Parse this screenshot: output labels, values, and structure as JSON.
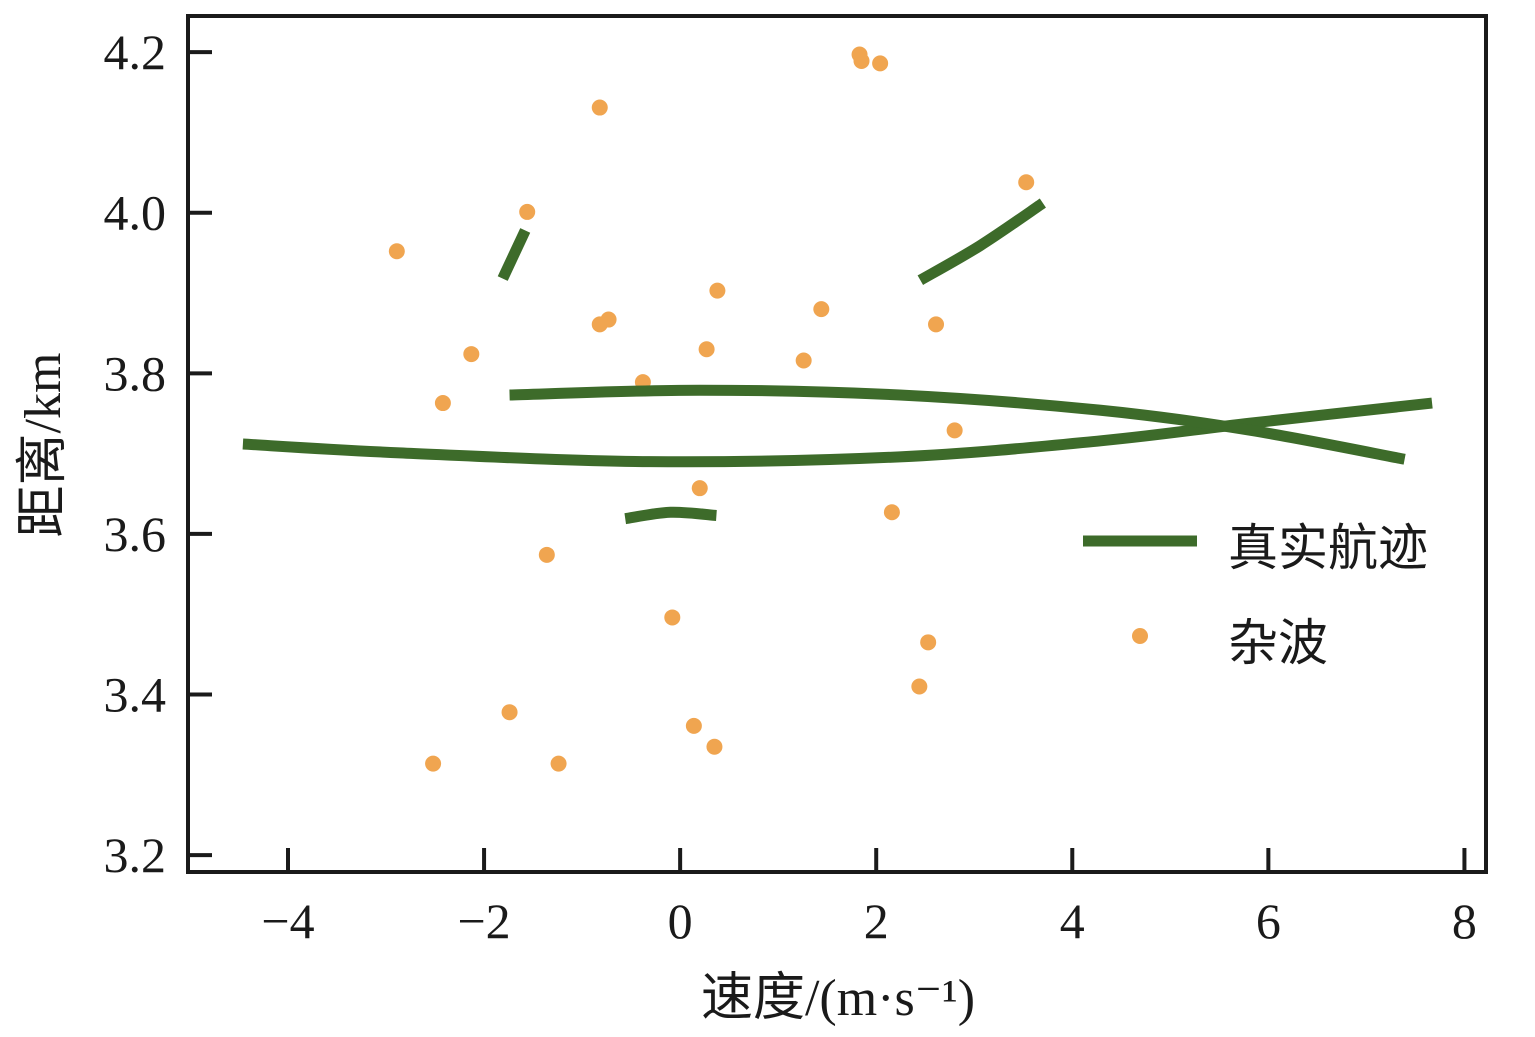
{
  "chart_data": {
    "type": "scatter",
    "title": "",
    "xlabel": "速度/(m·s⁻¹)",
    "ylabel": "距离/km",
    "xlim": [
      -5.02,
      8.22
    ],
    "ylim": [
      3.179,
      4.245
    ],
    "xticks": [
      -4,
      -2,
      0,
      2,
      4,
      6,
      8
    ],
    "xtick_labels": [
      "−4",
      "−2",
      "0",
      "2",
      "4",
      "6",
      "8"
    ],
    "yticks": [
      3.2,
      3.4,
      3.6,
      3.8,
      4.0,
      4.2
    ],
    "ytick_labels": [
      "3.2",
      "3.4",
      "3.6",
      "3.8",
      "4.0",
      "4.2"
    ],
    "grid": false,
    "legend_position": "right",
    "colors": {
      "track": "#3d6b2a",
      "clutter": "#f0a550",
      "axis": "#1a1a1a"
    },
    "series": [
      {
        "name": "真实航迹",
        "kind": "line",
        "segments": [
          [
            [
              -4.46,
              3.712
            ],
            [
              -2.86,
              3.701
            ],
            [
              -0.31,
              3.69
            ],
            [
              2.24,
              3.696
            ],
            [
              4.29,
              3.716
            ],
            [
              5.82,
              3.738
            ],
            [
              7.67,
              3.763
            ]
          ],
          [
            [
              -1.74,
              3.773
            ],
            [
              0.2,
              3.779
            ],
            [
              2.24,
              3.773
            ],
            [
              4.29,
              3.754
            ],
            [
              5.82,
              3.729
            ],
            [
              7.39,
              3.693
            ]
          ],
          [
            [
              -1.81,
              3.918
            ],
            [
              -1.58,
              3.978
            ]
          ],
          [
            [
              2.45,
              3.916
            ],
            [
              3.06,
              3.959
            ],
            [
              3.7,
              4.012
            ]
          ],
          [
            [
              -0.56,
              3.619
            ],
            [
              -0.1,
              3.627
            ],
            [
              0.37,
              3.623
            ]
          ]
        ]
      },
      {
        "name": "杂波",
        "kind": "scatter",
        "points": [
          [
            -2.89,
            3.952
          ],
          [
            -0.82,
            4.131
          ],
          [
            -1.56,
            4.001
          ],
          [
            1.83,
            4.197
          ],
          [
            1.85,
            4.189
          ],
          [
            2.04,
            4.186
          ],
          [
            3.53,
            4.038
          ],
          [
            -2.13,
            3.824
          ],
          [
            -2.42,
            3.763
          ],
          [
            -0.82,
            3.861
          ],
          [
            -0.73,
            3.867
          ],
          [
            0.38,
            3.903
          ],
          [
            0.27,
            3.83
          ],
          [
            -0.38,
            3.789
          ],
          [
            1.26,
            3.816
          ],
          [
            1.44,
            3.88
          ],
          [
            2.61,
            3.861
          ],
          [
            2.8,
            3.729
          ],
          [
            0.2,
            3.657
          ],
          [
            2.16,
            3.627
          ],
          [
            -1.36,
            3.574
          ],
          [
            -0.08,
            3.496
          ],
          [
            2.53,
            3.465
          ],
          [
            2.44,
            3.41
          ],
          [
            -1.74,
            3.378
          ],
          [
            0.14,
            3.361
          ],
          [
            0.35,
            3.335
          ],
          [
            -2.52,
            3.314
          ],
          [
            -1.24,
            3.314
          ]
        ]
      }
    ]
  }
}
